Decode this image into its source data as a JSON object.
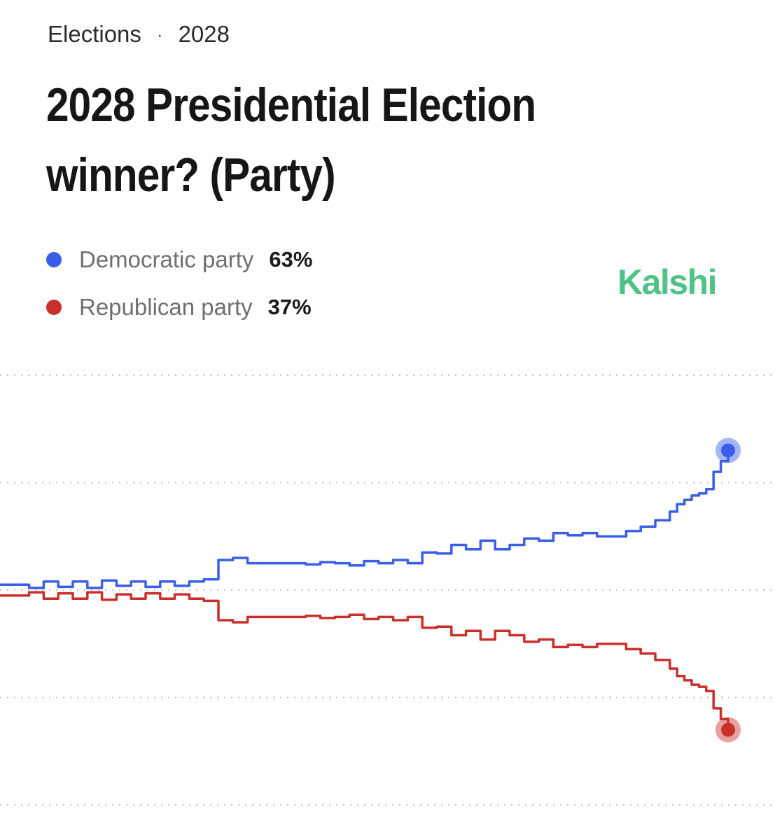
{
  "header": {
    "breadcrumb_section": "Elections",
    "breadcrumb_separator": "·",
    "breadcrumb_year": "2028",
    "title": "2028 Presidential Election winner? (Party)",
    "brand": "Kalshi",
    "brand_color": "#4fc387"
  },
  "legend": [
    {
      "label": "Democratic party",
      "value": "63%",
      "color": "#3a5ee8"
    },
    {
      "label": "Republican party",
      "value": "37%",
      "color": "#c9302c"
    }
  ],
  "chart_data": {
    "type": "line",
    "title": "",
    "xlabel": "",
    "ylabel": "",
    "x_ticks": "none",
    "y_ticks": "none",
    "ylim": [
      30,
      70
    ],
    "gridlines": [
      30,
      40,
      50,
      60,
      70
    ],
    "grid": true,
    "grid_style": "dotted horizontal",
    "legend_position": "top-left",
    "end_markers": true,
    "series": [
      {
        "name": "Democratic party",
        "color": "#3a5ee8",
        "x": [
          0,
          2,
          4,
          6,
          8,
          10,
          12,
          14,
          16,
          18,
          20,
          22,
          24,
          26,
          28,
          30,
          32,
          34,
          36,
          38,
          40,
          42,
          44,
          46,
          48,
          50,
          52,
          54,
          56,
          58,
          60,
          62,
          64,
          66,
          68,
          70,
          72,
          74,
          76,
          78,
          80,
          82,
          84,
          86,
          88,
          90,
          92,
          93,
          94,
          95,
          96,
          97,
          98,
          99,
          100
        ],
        "values": [
          50.5,
          50.5,
          50.2,
          50.8,
          50.3,
          50.8,
          50.2,
          50.9,
          50.4,
          50.8,
          50.3,
          50.8,
          50.4,
          50.8,
          51.0,
          52.8,
          53.0,
          52.5,
          52.5,
          52.5,
          52.5,
          52.4,
          52.6,
          52.5,
          52.3,
          52.7,
          52.5,
          52.8,
          52.5,
          53.5,
          53.4,
          54.2,
          53.8,
          54.6,
          53.8,
          54.2,
          54.8,
          54.6,
          55.3,
          55.1,
          55.3,
          55.0,
          55.0,
          55.5,
          55.9,
          56.5,
          57.3,
          58.0,
          58.4,
          58.8,
          59.0,
          59.4,
          61.0,
          62.0,
          63.0
        ]
      },
      {
        "name": "Republican party",
        "color": "#c9302c",
        "x": [
          0,
          2,
          4,
          6,
          8,
          10,
          12,
          14,
          16,
          18,
          20,
          22,
          24,
          26,
          28,
          30,
          32,
          34,
          36,
          38,
          40,
          42,
          44,
          46,
          48,
          50,
          52,
          54,
          56,
          58,
          60,
          62,
          64,
          66,
          68,
          70,
          72,
          74,
          76,
          78,
          80,
          82,
          84,
          86,
          88,
          90,
          92,
          93,
          94,
          95,
          96,
          97,
          98,
          99,
          100
        ],
        "values": [
          49.5,
          49.5,
          49.8,
          49.2,
          49.7,
          49.2,
          49.8,
          49.1,
          49.6,
          49.2,
          49.7,
          49.2,
          49.6,
          49.2,
          49.0,
          47.2,
          47.0,
          47.5,
          47.5,
          47.5,
          47.5,
          47.6,
          47.4,
          47.5,
          47.7,
          47.3,
          47.5,
          47.2,
          47.5,
          46.5,
          46.6,
          45.8,
          46.2,
          45.4,
          46.2,
          45.8,
          45.2,
          45.4,
          44.7,
          44.9,
          44.7,
          45.0,
          45.0,
          44.5,
          44.1,
          43.5,
          42.7,
          42.0,
          41.6,
          41.2,
          41.0,
          40.6,
          39.0,
          38.0,
          37.0
        ]
      }
    ]
  }
}
